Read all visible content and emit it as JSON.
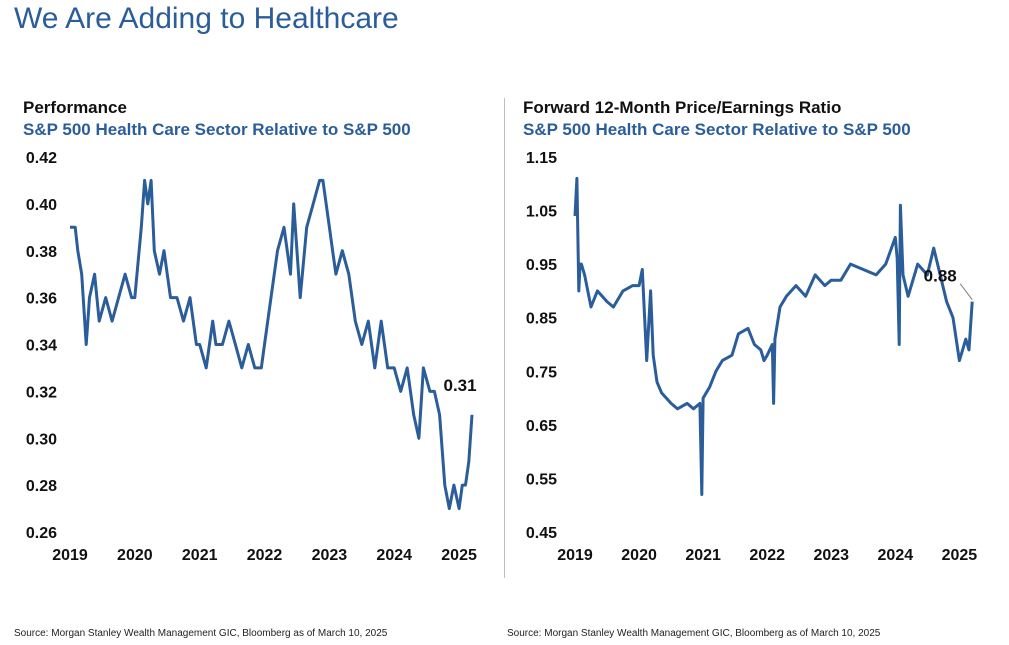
{
  "page": {
    "title": "We Are Adding to Healthcare"
  },
  "chart_data": [
    {
      "type": "line",
      "title": "Performance",
      "subtitle": "S&P 500 Health Care Sector Relative to S&P 500",
      "xlabel": "",
      "ylabel": "",
      "xlim": [
        2019,
        2025.4
      ],
      "ylim": [
        0.26,
        0.42
      ],
      "y_ticks": [
        "0.42",
        "0.40",
        "0.38",
        "0.36",
        "0.34",
        "0.32",
        "0.30",
        "0.28",
        "0.26"
      ],
      "x_ticks": [
        "2019",
        "2020",
        "2021",
        "2022",
        "2023",
        "2024",
        "2025"
      ],
      "grid": false,
      "legend": "none",
      "color": "#2a5d9a",
      "annotation": {
        "label": "0.31",
        "x": 2025.2,
        "y": 0.31
      },
      "source": "Source: Morgan Stanley Wealth Management GIC, Bloomberg as of March 10, 2025",
      "series": [
        {
          "x": [
            2019.0,
            2019.08,
            2019.12,
            2019.18,
            2019.25,
            2019.3,
            2019.38,
            2019.45,
            2019.55,
            2019.65,
            2019.75,
            2019.85,
            2019.95,
            2020.0,
            2020.1,
            2020.15,
            2020.2,
            2020.25,
            2020.3,
            2020.38,
            2020.45,
            2020.55,
            2020.65,
            2020.75,
            2020.85,
            2020.95,
            2021.0,
            2021.1,
            2021.2,
            2021.25,
            2021.35,
            2021.45,
            2021.55,
            2021.65,
            2021.75,
            2021.85,
            2021.95,
            2022.0,
            2022.1,
            2022.2,
            2022.3,
            2022.4,
            2022.45,
            2022.55,
            2022.65,
            2022.75,
            2022.85,
            2022.9,
            2023.0,
            2023.05,
            2023.1,
            2023.2,
            2023.3,
            2023.4,
            2023.5,
            2023.6,
            2023.7,
            2023.8,
            2023.9,
            2024.0,
            2024.1,
            2024.2,
            2024.3,
            2024.38,
            2024.45,
            2024.55,
            2024.62,
            2024.7,
            2024.78,
            2024.85,
            2024.92,
            2025.0,
            2025.05,
            2025.1,
            2025.15,
            2025.2
          ],
          "y": [
            0.39,
            0.39,
            0.38,
            0.37,
            0.34,
            0.36,
            0.37,
            0.35,
            0.36,
            0.35,
            0.36,
            0.37,
            0.36,
            0.36,
            0.39,
            0.41,
            0.4,
            0.41,
            0.38,
            0.37,
            0.38,
            0.36,
            0.36,
            0.35,
            0.36,
            0.34,
            0.34,
            0.33,
            0.35,
            0.34,
            0.34,
            0.35,
            0.34,
            0.33,
            0.34,
            0.33,
            0.33,
            0.34,
            0.36,
            0.38,
            0.39,
            0.37,
            0.4,
            0.36,
            0.39,
            0.4,
            0.41,
            0.41,
            0.39,
            0.38,
            0.37,
            0.38,
            0.37,
            0.35,
            0.34,
            0.35,
            0.33,
            0.35,
            0.33,
            0.33,
            0.32,
            0.33,
            0.31,
            0.3,
            0.33,
            0.32,
            0.32,
            0.31,
            0.28,
            0.27,
            0.28,
            0.27,
            0.28,
            0.28,
            0.29,
            0.31
          ]
        }
      ]
    },
    {
      "type": "line",
      "title": "Forward 12-Month Price/Earnings Ratio",
      "subtitle": "S&P 500 Health Care Sector Relative to S&P 500",
      "xlabel": "",
      "ylabel": "",
      "xlim": [
        2019,
        2025.4
      ],
      "ylim": [
        0.45,
        1.15
      ],
      "y_ticks": [
        "1.15",
        "1.05",
        "0.95",
        "0.85",
        "0.75",
        "0.65",
        "0.55",
        "0.45"
      ],
      "x_ticks": [
        "2019",
        "2020",
        "2021",
        "2022",
        "2023",
        "2024",
        "2025"
      ],
      "grid": false,
      "legend": "none",
      "color": "#2a5d9a",
      "annotation": {
        "label": "0.88",
        "x": 2025.2,
        "y": 0.88
      },
      "source": "Source: Morgan Stanley Wealth Management GIC, Bloomberg as of March 10, 2025",
      "series": [
        {
          "x": [
            2019.0,
            2019.03,
            2019.06,
            2019.08,
            2019.1,
            2019.15,
            2019.25,
            2019.35,
            2019.5,
            2019.6,
            2019.75,
            2019.9,
            2020.0,
            2020.05,
            2020.12,
            2020.18,
            2020.22,
            2020.28,
            2020.35,
            2020.5,
            2020.6,
            2020.75,
            2020.85,
            2020.95,
            2020.98,
            2021.0,
            2021.05,
            2021.1,
            2021.2,
            2021.3,
            2021.45,
            2021.55,
            2021.7,
            2021.8,
            2021.9,
            2021.95,
            2022.0,
            2022.08,
            2022.1,
            2022.12,
            2022.2,
            2022.3,
            2022.45,
            2022.6,
            2022.75,
            2022.9,
            2023.0,
            2023.15,
            2023.3,
            2023.5,
            2023.7,
            2023.85,
            2024.0,
            2024.03,
            2024.06,
            2024.08,
            2024.12,
            2024.2,
            2024.35,
            2024.5,
            2024.6,
            2024.7,
            2024.8,
            2024.9,
            2025.0,
            2025.05,
            2025.1,
            2025.15,
            2025.2
          ],
          "y": [
            1.04,
            1.11,
            0.9,
            0.95,
            0.95,
            0.93,
            0.87,
            0.9,
            0.88,
            0.87,
            0.9,
            0.91,
            0.91,
            0.94,
            0.77,
            0.9,
            0.78,
            0.73,
            0.71,
            0.69,
            0.68,
            0.69,
            0.68,
            0.69,
            0.52,
            0.7,
            0.71,
            0.72,
            0.75,
            0.77,
            0.78,
            0.82,
            0.83,
            0.8,
            0.79,
            0.77,
            0.78,
            0.8,
            0.69,
            0.81,
            0.87,
            0.89,
            0.91,
            0.89,
            0.93,
            0.91,
            0.92,
            0.92,
            0.95,
            0.94,
            0.93,
            0.95,
            1.0,
            0.96,
            0.8,
            1.06,
            0.93,
            0.89,
            0.95,
            0.93,
            0.98,
            0.93,
            0.88,
            0.85,
            0.77,
            0.79,
            0.81,
            0.79,
            0.88
          ]
        }
      ]
    }
  ]
}
